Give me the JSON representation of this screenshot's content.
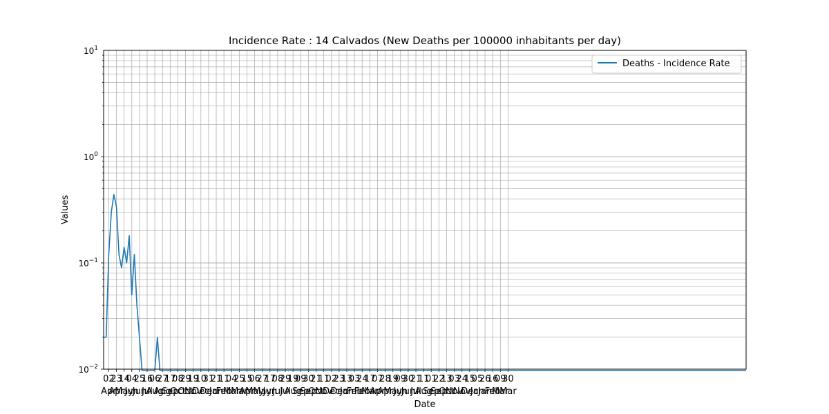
{
  "chart_data": {
    "type": "line",
    "title": "Incidence Rate : 14 Calvados (New Deaths per 100000 inhabitants per day)",
    "xlabel": "Date",
    "ylabel": "Values",
    "yscale": "log",
    "ylim": [
      0.01,
      10
    ],
    "y_ticks": [
      {
        "value": 0.01,
        "base": "10",
        "exp": "−2"
      },
      {
        "value": 0.1,
        "base": "10",
        "exp": "−1"
      },
      {
        "value": 1,
        "base": "10",
        "exp": "0"
      },
      {
        "value": 10,
        "base": "10",
        "exp": "1"
      }
    ],
    "grid": true,
    "legend": {
      "location": "top-right",
      "entries": [
        "Deaths - Incidence Rate"
      ]
    },
    "line_color": "#1f77b4",
    "x_tick_labels": [
      {
        "day": "02",
        "month": "Apr"
      },
      {
        "day": "23",
        "month": "Apr"
      },
      {
        "day": "14",
        "month": "May"
      },
      {
        "day": "04",
        "month": "Jun"
      },
      {
        "day": "25",
        "month": "Jun"
      },
      {
        "day": "16",
        "month": "Jul"
      },
      {
        "day": "06",
        "month": "Aug"
      },
      {
        "day": "27",
        "month": "Aug"
      },
      {
        "day": "17",
        "month": "Sep"
      },
      {
        "day": "08",
        "month": "Oct"
      },
      {
        "day": "29",
        "month": "Oct"
      },
      {
        "day": "19",
        "month": "Nov"
      },
      {
        "day": "10",
        "month": "Dec"
      },
      {
        "day": "31",
        "month": "Dec"
      },
      {
        "day": "21",
        "month": "Jan"
      },
      {
        "day": "11",
        "month": "Feb"
      },
      {
        "day": "04",
        "month": "Mar"
      },
      {
        "day": "25",
        "month": "Mar"
      },
      {
        "day": "15",
        "month": "Apr"
      },
      {
        "day": "06",
        "month": "May"
      },
      {
        "day": "27",
        "month": "May"
      },
      {
        "day": "17",
        "month": "Jun"
      },
      {
        "day": "08",
        "month": "Jul"
      },
      {
        "day": "29",
        "month": "Jul"
      },
      {
        "day": "19",
        "month": "Aug"
      },
      {
        "day": "09",
        "month": "Sep"
      },
      {
        "day": "30",
        "month": "Sep"
      },
      {
        "day": "21",
        "month": "Oct"
      },
      {
        "day": "11",
        "month": "Nov"
      },
      {
        "day": "02",
        "month": "Dec"
      },
      {
        "day": "23",
        "month": "Dec"
      },
      {
        "day": "13",
        "month": "Jan"
      },
      {
        "day": "03",
        "month": "Feb"
      },
      {
        "day": "24",
        "month": "Feb"
      },
      {
        "day": "17",
        "month": "Mar"
      },
      {
        "day": "07",
        "month": "Apr"
      },
      {
        "day": "28",
        "month": "Apr"
      },
      {
        "day": "19",
        "month": "May"
      },
      {
        "day": "09",
        "month": "Jun"
      },
      {
        "day": "30",
        "month": "Jun"
      },
      {
        "day": "21",
        "month": "Jul"
      },
      {
        "day": "11",
        "month": "Aug"
      },
      {
        "day": "01",
        "month": "Sep"
      },
      {
        "day": "22",
        "month": "Sep"
      },
      {
        "day": "13",
        "month": "Oct"
      },
      {
        "day": "03",
        "month": "Nov"
      },
      {
        "day": "24",
        "month": "Nov"
      },
      {
        "day": "15",
        "month": "Dec"
      },
      {
        "day": "05",
        "month": "Jan"
      },
      {
        "day": "26",
        "month": "Jan"
      },
      {
        "day": "16",
        "month": "Feb"
      },
      {
        "day": "09",
        "month": "Mar"
      },
      {
        "day": "30",
        "month": "Mar"
      }
    ],
    "series": [
      {
        "name": "Deaths - Incidence Rate",
        "x_start": "2020-03-19",
        "step_days": 7,
        "values": [
          0.02,
          0.02,
          0.12,
          0.3,
          0.44,
          0.34,
          0.12,
          0.09,
          0.14,
          0.1,
          0.18,
          0.05,
          0.12,
          0.04,
          0.02,
          0.009,
          0.009,
          0.009,
          0.009,
          0.009,
          0.009,
          0.02,
          0.009,
          0.009,
          0.009,
          0.009,
          0.009,
          0.009,
          0.009,
          0.009,
          0.009,
          0.009,
          0.009,
          0.009,
          0.009,
          0.009,
          0.009,
          0.009,
          0.009,
          0.009,
          0.009,
          0.009,
          0.009,
          0.009,
          0.009,
          0.009,
          0.009,
          0.009,
          0.009,
          0.009,
          0.009,
          0.009,
          0.009,
          0.009,
          0.009,
          0.009,
          0.009,
          0.009,
          0.009,
          0.009,
          0.009,
          0.009,
          0.009,
          0.009,
          0.009,
          0.009,
          0.009,
          0.009,
          0.009,
          0.009,
          0.009,
          0.009,
          0.009,
          0.009,
          0.009,
          0.009,
          0.009,
          0.009,
          0.009,
          0.009,
          0.009,
          0.009,
          0.009,
          0.009,
          0.009,
          0.009,
          0.009,
          0.009,
          0.009,
          0.009,
          0.009,
          0.009,
          0.009,
          0.009,
          0.009,
          0.009,
          0.009,
          0.009,
          0.009,
          0.009,
          0.009,
          0.009,
          0.009,
          0.009,
          0.009,
          0.009,
          0.009,
          0.009,
          0.009,
          0.009,
          0.009,
          0.009,
          0.009,
          0.009,
          0.009,
          0.009,
          0.009,
          0.009,
          0.009,
          0.009,
          0.009,
          0.009,
          0.009,
          0.009,
          0.009,
          0.009,
          0.009,
          0.009,
          0.009,
          0.009,
          0.009,
          0.009,
          0.009,
          0.009,
          0.009,
          0.009,
          0.009,
          0.009,
          0.009,
          0.009,
          0.009,
          0.009,
          0.009,
          0.009,
          0.009,
          0.009,
          0.009,
          0.009,
          0.009,
          0.009,
          0.009,
          0.009,
          0.009,
          0.009,
          0.009,
          0.009,
          0.009,
          0.009,
          0.009,
          0.009,
          0.009,
          0.009,
          0.009,
          0.009,
          0.009,
          0.009,
          0.009,
          0.009,
          0.009,
          0.009,
          0.009,
          0.009,
          0.009,
          0.009,
          0.009,
          0.009,
          0.009,
          0.009,
          0.009,
          0.009,
          0.009,
          0.009,
          0.009,
          0.009,
          0.009,
          0.009,
          0.009,
          0.009,
          0.009,
          0.009,
          0.009,
          0.009,
          0.009,
          0.009,
          0.009,
          0.009,
          0.009,
          0.009,
          0.009,
          0.009,
          0.009,
          0.009,
          0.009,
          0.009,
          0.009,
          0.009,
          0.009,
          0.009,
          0.009,
          0.009,
          0.009,
          0.009,
          0.009,
          0.009,
          0.009,
          0.009,
          0.009,
          0.009,
          0.009,
          0.009,
          0.009,
          0.009,
          0.009,
          0.009,
          0.009,
          0.009,
          0.009,
          0.009,
          0.009,
          0.009,
          0.009,
          0.009,
          0.009,
          0.009,
          0.009,
          0.009,
          0.009,
          0.009,
          0.009,
          0.009,
          0.009,
          0.009,
          0.009,
          0.009,
          0.009,
          0.009,
          0.009,
          0.009,
          0.009,
          0.009,
          0.009,
          0.009
        ]
      }
    ]
  }
}
